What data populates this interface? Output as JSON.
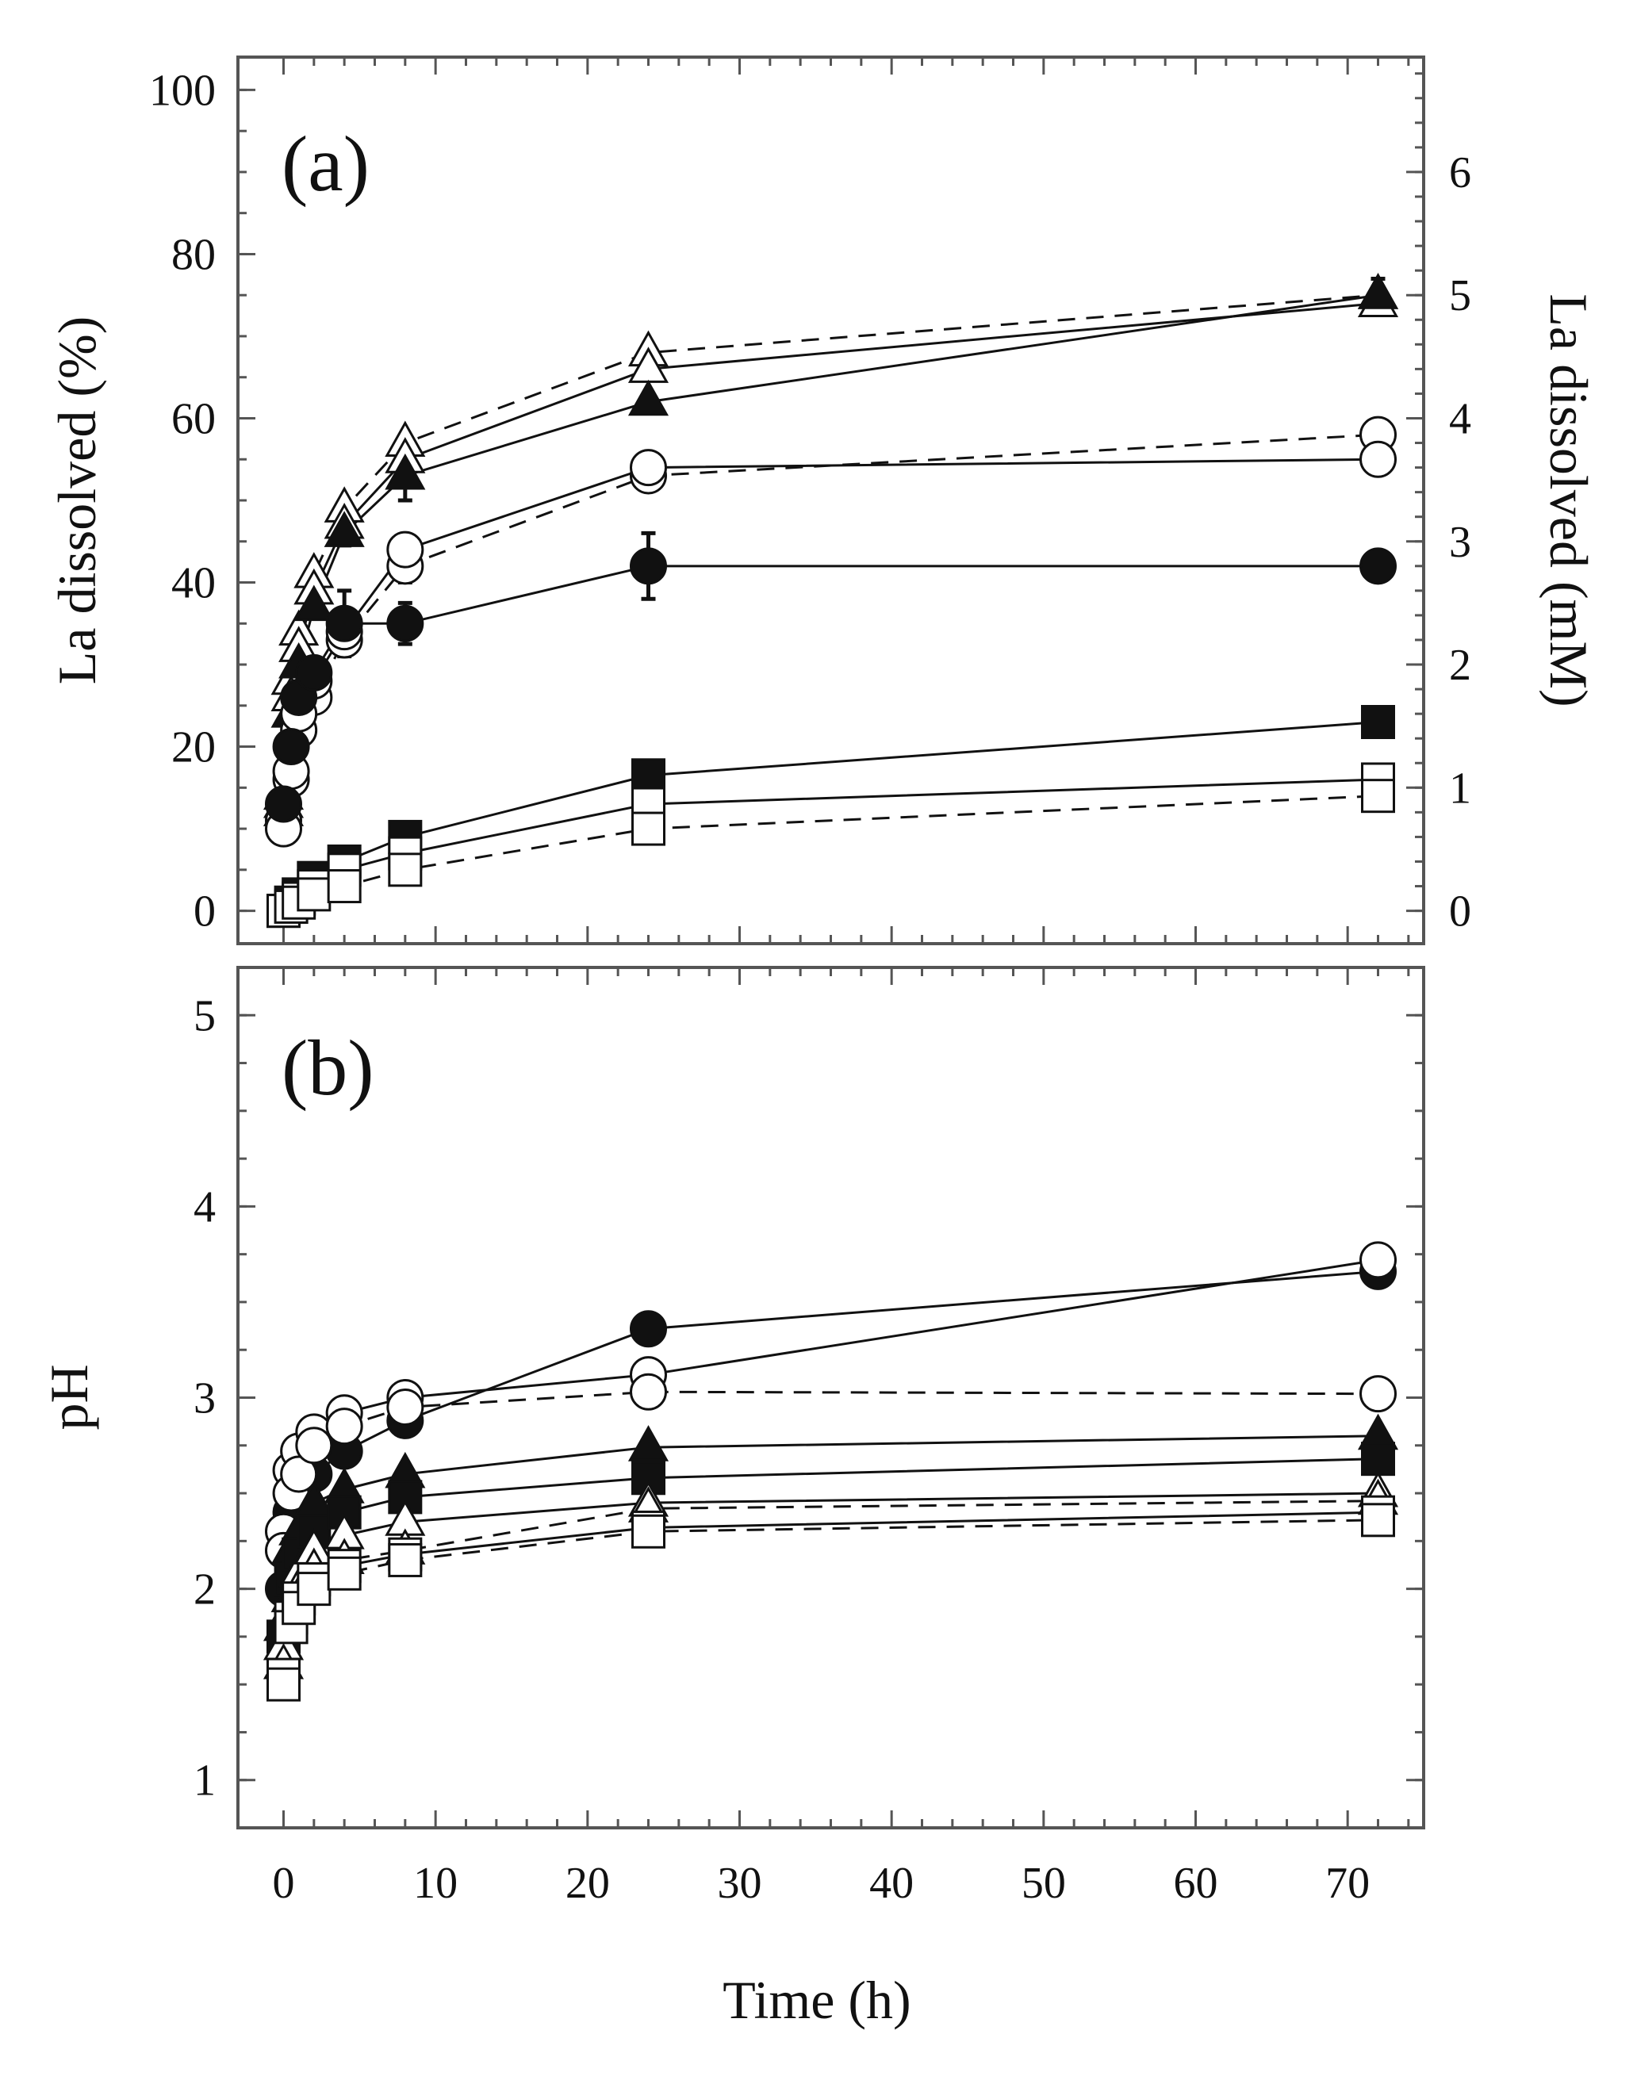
{
  "chart_data": [
    {
      "panel": "(a)",
      "type": "line",
      "xlabel": "Time (h)",
      "ylabel": "La dissolved (%)",
      "y2label": "La dissolved (mM)",
      "xlim": [
        -3,
        75
      ],
      "ylim": [
        -4,
        104
      ],
      "y2lim": [
        -0.2667,
        6.9333
      ],
      "xticks": [
        0,
        10,
        20,
        30,
        40,
        50,
        60,
        70
      ],
      "yticks": [
        0,
        20,
        40,
        60,
        80,
        100
      ],
      "y2ticks": [
        0,
        1,
        2,
        3,
        4,
        5,
        6
      ],
      "series": [
        {
          "name": "open-triangle-dashed",
          "marker": "triangle",
          "filled": false,
          "dashed": true,
          "x": [
            0,
            0.5,
            1,
            2,
            4,
            8,
            24,
            72
          ],
          "y": [
            14,
            28,
            34,
            41,
            49,
            57,
            68,
            75
          ]
        },
        {
          "name": "open-triangle-solid",
          "marker": "triangle",
          "filled": false,
          "dashed": false,
          "x": [
            0,
            0.5,
            1,
            2,
            4,
            8,
            24,
            72
          ],
          "y": [
            13,
            26,
            32,
            39,
            47,
            55,
            66,
            74
          ]
        },
        {
          "name": "filled-triangle",
          "marker": "triangle",
          "filled": true,
          "dashed": false,
          "x": [
            0,
            0.5,
            1,
            2,
            4,
            8,
            24,
            72
          ],
          "y": [
            12,
            24,
            30,
            37,
            46,
            53,
            62,
            75
          ],
          "err": [
            0,
            0,
            0,
            0,
            1.5,
            3,
            0,
            2
          ]
        },
        {
          "name": "open-circle-dashed",
          "marker": "circle",
          "filled": false,
          "dashed": true,
          "x": [
            0,
            0.5,
            1,
            2,
            4,
            8,
            24,
            72
          ],
          "y": [
            11,
            16,
            22,
            26,
            33,
            42,
            53,
            58
          ],
          "err": [
            0,
            0,
            0,
            0,
            0,
            2,
            1.5,
            1.5
          ]
        },
        {
          "name": "open-circle-solid",
          "marker": "circle",
          "filled": false,
          "dashed": false,
          "x": [
            0,
            0.5,
            1,
            2,
            4,
            8,
            24,
            72
          ],
          "y": [
            10,
            17,
            24,
            28,
            34,
            44,
            54,
            55
          ]
        },
        {
          "name": "filled-circle",
          "marker": "circle",
          "filled": true,
          "dashed": false,
          "x": [
            0,
            0.5,
            1,
            2,
            4,
            8,
            24,
            72
          ],
          "y": [
            13,
            20,
            26,
            29,
            35,
            35,
            42,
            42
          ],
          "err": [
            0,
            0,
            0,
            0,
            4,
            2.5,
            4,
            0
          ]
        },
        {
          "name": "filled-square",
          "marker": "square",
          "filled": true,
          "dashed": false,
          "x": [
            0,
            0.5,
            1,
            2,
            4,
            8,
            24,
            72
          ],
          "y": [
            0,
            1,
            2,
            4,
            6,
            9,
            16.5,
            23
          ]
        },
        {
          "name": "open-square-solid",
          "marker": "square",
          "filled": false,
          "dashed": false,
          "x": [
            0,
            0.5,
            1,
            2,
            4,
            8,
            24,
            72
          ],
          "y": [
            0,
            0.5,
            1.5,
            3,
            5,
            7,
            13,
            16
          ],
          "err": [
            0,
            0,
            0,
            0,
            0,
            0,
            1.5,
            1.5
          ]
        },
        {
          "name": "open-square-dashed",
          "marker": "square",
          "filled": false,
          "dashed": true,
          "x": [
            0,
            0.5,
            1,
            2,
            4,
            8,
            24,
            72
          ],
          "y": [
            0,
            0.5,
            1,
            2,
            3,
            5,
            10,
            14
          ]
        }
      ]
    },
    {
      "panel": "(b)",
      "type": "line",
      "xlabel": "Time (h)",
      "ylabel": "pH",
      "xlim": [
        -3,
        75
      ],
      "ylim": [
        0.75,
        5.25
      ],
      "xticks": [
        0,
        10,
        20,
        30,
        40,
        50,
        60,
        70
      ],
      "yticks": [
        1,
        2,
        3,
        4,
        5
      ],
      "series": [
        {
          "name": "filled-circle",
          "marker": "circle",
          "filled": true,
          "dashed": false,
          "x": [
            0,
            0.5,
            1,
            2,
            4,
            8,
            24,
            72
          ],
          "y": [
            2.0,
            2.4,
            2.45,
            2.6,
            2.72,
            2.88,
            3.36,
            3.66
          ]
        },
        {
          "name": "open-circle-solid",
          "marker": "circle",
          "filled": false,
          "dashed": false,
          "x": [
            0,
            0.5,
            1,
            2,
            4,
            8,
            24,
            72
          ],
          "y": [
            2.3,
            2.62,
            2.72,
            2.82,
            2.92,
            3.0,
            3.12,
            3.72
          ]
        },
        {
          "name": "open-circle-dashed",
          "marker": "circle",
          "filled": false,
          "dashed": true,
          "x": [
            0,
            0.5,
            1,
            2,
            4,
            8,
            24,
            72
          ],
          "y": [
            2.2,
            2.5,
            2.6,
            2.75,
            2.85,
            2.95,
            3.03,
            3.02
          ]
        },
        {
          "name": "filled-triangle",
          "marker": "triangle",
          "filled": true,
          "dashed": false,
          "x": [
            0,
            0.5,
            1,
            2,
            4,
            8,
            24,
            72
          ],
          "y": [
            1.8,
            2.2,
            2.3,
            2.45,
            2.52,
            2.6,
            2.74,
            2.8
          ]
        },
        {
          "name": "filled-square",
          "marker": "square",
          "filled": true,
          "dashed": false,
          "x": [
            0,
            0.5,
            1,
            2,
            4,
            8,
            24,
            72
          ],
          "y": [
            1.75,
            2.05,
            2.18,
            2.3,
            2.4,
            2.48,
            2.58,
            2.68
          ]
        },
        {
          "name": "open-triangle-solid",
          "marker": "triangle",
          "filled": false,
          "dashed": false,
          "x": [
            0,
            0.5,
            1,
            2,
            4,
            8,
            24,
            72
          ],
          "y": [
            1.7,
            1.95,
            2.08,
            2.2,
            2.28,
            2.35,
            2.45,
            2.5
          ]
        },
        {
          "name": "open-triangle-dashed",
          "marker": "triangle",
          "filled": false,
          "dashed": true,
          "x": [
            0,
            0.5,
            1,
            2,
            4,
            8,
            24,
            72
          ],
          "y": [
            1.6,
            1.9,
            2.0,
            2.1,
            2.15,
            2.2,
            2.42,
            2.46
          ]
        },
        {
          "name": "open-square-solid",
          "marker": "square",
          "filled": false,
          "dashed": false,
          "x": [
            0,
            0.5,
            1,
            2,
            4,
            8,
            24,
            72
          ],
          "y": [
            1.55,
            1.85,
            1.95,
            2.05,
            2.12,
            2.18,
            2.32,
            2.4
          ]
        },
        {
          "name": "open-square-dashed",
          "marker": "square",
          "filled": false,
          "dashed": true,
          "x": [
            0,
            0.5,
            1,
            2,
            4,
            8,
            24,
            72
          ],
          "y": [
            1.5,
            1.8,
            1.9,
            2.0,
            2.08,
            2.15,
            2.3,
            2.36
          ]
        }
      ]
    }
  ]
}
